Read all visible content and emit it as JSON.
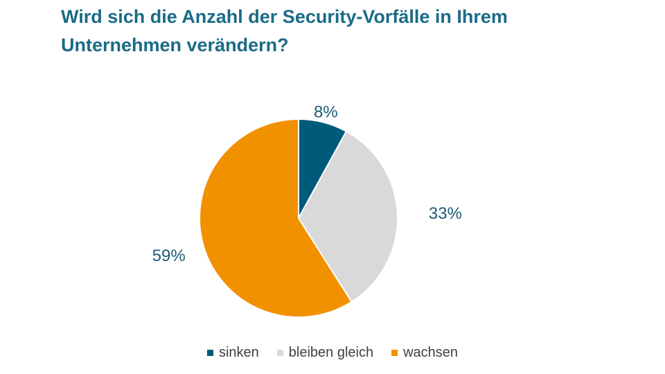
{
  "title": {
    "line1": "Wird sich die Anzahl der Security-Vorfälle in Ihrem",
    "line2": "Unternehmen verändern?"
  },
  "colors": {
    "title": "#1a6b87",
    "label": "#1b5b76",
    "sinken": "#005a7a",
    "bleiben_gleich": "#d9d9d9",
    "wachsen": "#f29100"
  },
  "chart_data": {
    "type": "pie",
    "start": "12 o'clock",
    "direction": "clockwise",
    "legend_position": "bottom",
    "categories": [
      "sinken",
      "bleiben gleich",
      "wachsen"
    ],
    "values": [
      8,
      33,
      59
    ],
    "labels": [
      "8%",
      "33%",
      "59%"
    ],
    "colors": [
      "#005a7a",
      "#d9d9d9",
      "#f29100"
    ]
  }
}
